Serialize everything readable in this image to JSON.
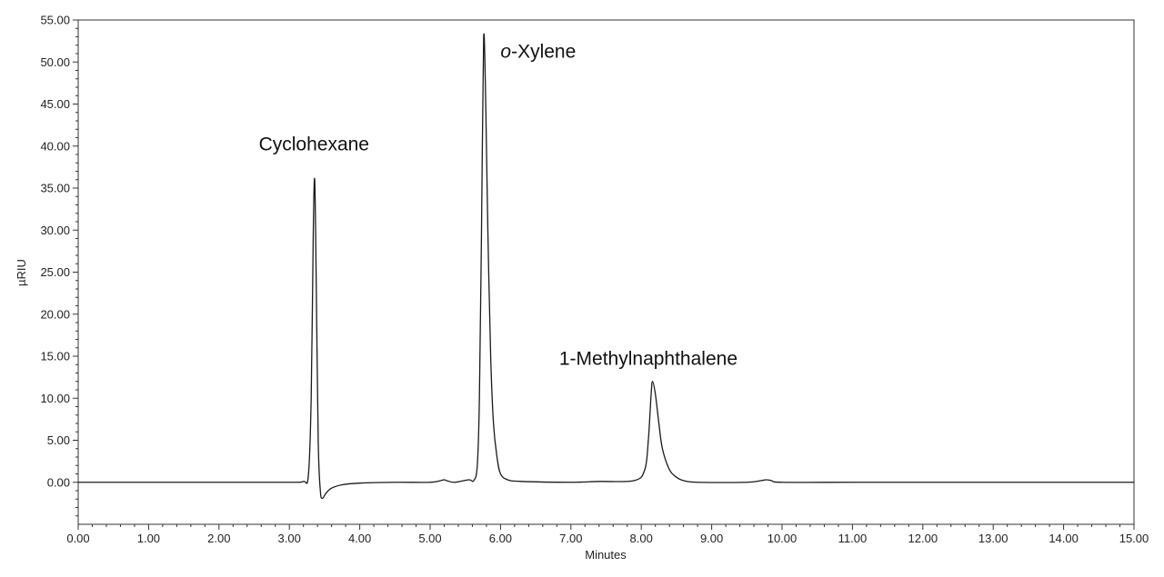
{
  "chart_data": {
    "type": "line",
    "title": "",
    "xlabel": "Minutes",
    "ylabel": "µRIU",
    "xlim": [
      0,
      15
    ],
    "ylim": [
      -5,
      55
    ],
    "x_ticks": [
      "0.00",
      "1.00",
      "2.00",
      "3.00",
      "4.00",
      "5.00",
      "6.00",
      "7.00",
      "8.00",
      "9.00",
      "10.00",
      "11.00",
      "12.00",
      "13.00",
      "14.00",
      "15.00"
    ],
    "y_ticks": [
      "0.00",
      "5.00",
      "10.00",
      "15.00",
      "20.00",
      "25.00",
      "30.00",
      "35.00",
      "40.00",
      "45.00",
      "50.00",
      "55.00"
    ],
    "grid": false,
    "line_color": "#1a1a1a",
    "series": [
      {
        "x": [
          0.0,
          1.0,
          2.0,
          3.0,
          3.2,
          3.27,
          3.31,
          3.34,
          3.36,
          3.38,
          3.41,
          3.44,
          3.47,
          3.52,
          3.6,
          3.75,
          4.0,
          4.5,
          5.0,
          5.15,
          5.2,
          5.25,
          5.35,
          5.55,
          5.62,
          5.67,
          5.7,
          5.73,
          5.76,
          5.79,
          5.82,
          5.86,
          5.9,
          5.95,
          6.0,
          6.1,
          6.3,
          7.0,
          7.4,
          7.9,
          8.05,
          8.1,
          8.14,
          8.16,
          8.2,
          8.25,
          8.3,
          8.4,
          8.5,
          8.6,
          8.8,
          9.5,
          9.7,
          9.78,
          9.85,
          10.0,
          11.0,
          12.0,
          13.0,
          14.0,
          15.0
        ],
        "y": [
          0.0,
          0.0,
          0.0,
          0.0,
          0.1,
          0.8,
          10.0,
          30.0,
          36.0,
          25.0,
          5.0,
          -1.0,
          -1.9,
          -1.3,
          -0.7,
          -0.3,
          -0.1,
          0.0,
          0.0,
          0.2,
          0.3,
          0.15,
          0.0,
          0.3,
          0.2,
          2.0,
          10.0,
          30.0,
          52.8,
          45.0,
          30.0,
          15.0,
          7.0,
          3.0,
          1.0,
          0.3,
          0.1,
          0.0,
          0.1,
          0.2,
          1.5,
          5.0,
          10.5,
          12.0,
          10.5,
          7.0,
          4.0,
          1.5,
          0.6,
          0.2,
          0.0,
          0.0,
          0.2,
          0.3,
          0.2,
          0.0,
          0.0,
          0.0,
          0.0,
          0.0,
          0.0
        ]
      }
    ],
    "annotations": [
      {
        "text": "Cyclohexane",
        "x": 3.35,
        "y": 39.5
      },
      {
        "text_prefix": "o",
        "text": "-Xylene",
        "x": 6.0,
        "y": 50.5
      },
      {
        "text": "1-Methylnaphthalene",
        "x": 8.1,
        "y": 14.0
      }
    ]
  }
}
